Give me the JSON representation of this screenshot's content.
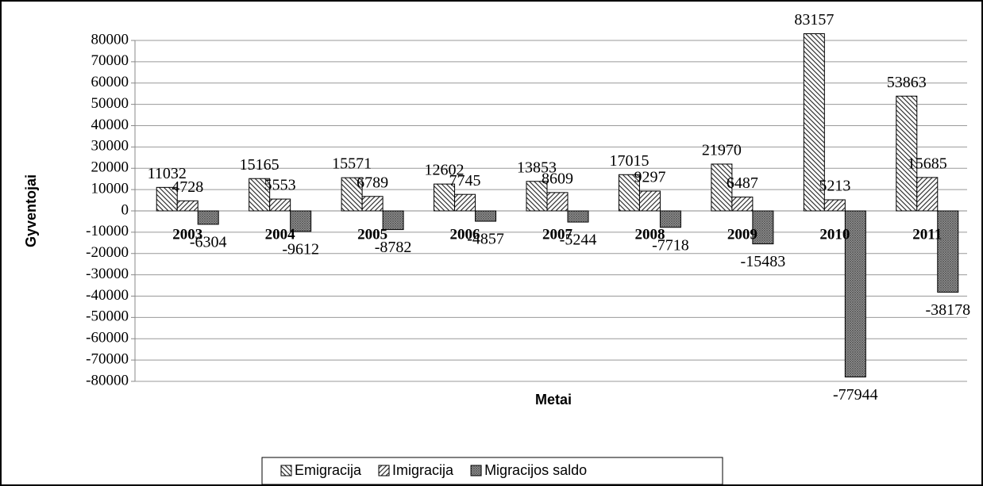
{
  "chart_data": {
    "type": "bar",
    "categories": [
      "2003",
      "2004",
      "2005",
      "2006",
      "2007",
      "2008",
      "2009",
      "2010",
      "2011"
    ],
    "series": [
      {
        "name": "Emigracija",
        "color": "#333333",
        "values": [
          11032,
          15165,
          15571,
          12602,
          13853,
          17015,
          21970,
          83157,
          53863
        ]
      },
      {
        "name": "Imigracija",
        "color": "#333333",
        "values": [
          4728,
          5553,
          6789,
          7745,
          8609,
          9297,
          6487,
          5213,
          15685
        ]
      },
      {
        "name": "Migracijos saldo",
        "color": "#555555",
        "values": [
          -6304,
          -9612,
          -8782,
          -4857,
          -5244,
          -7718,
          -15483,
          -77944,
          -38178
        ]
      }
    ],
    "ylabel": "Gyventojai",
    "xlabel": "Metai",
    "ylim": [
      -80000,
      80000
    ],
    "yticks": [
      -80000,
      -70000,
      -60000,
      -50000,
      -40000,
      -30000,
      -20000,
      -10000,
      0,
      10000,
      20000,
      30000,
      40000,
      50000,
      60000,
      70000,
      80000
    ],
    "grid": true,
    "legend": "bottom"
  }
}
